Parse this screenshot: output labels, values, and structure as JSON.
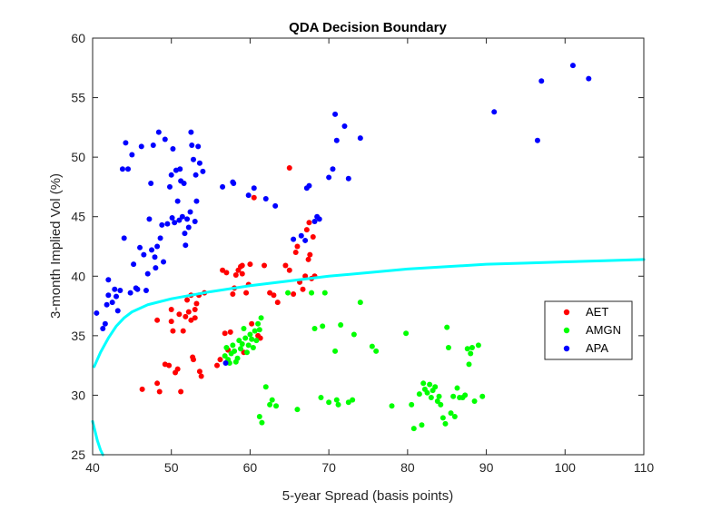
{
  "chart_data": {
    "type": "scatter",
    "title": "QDA Decision Boundary",
    "xlabel": "5-year Spread (basis points)",
    "ylabel": "3-month Implied Vol (%)",
    "xlim": [
      40,
      110
    ],
    "ylim": [
      25,
      60
    ],
    "xticks": [
      "40",
      "50",
      "60",
      "70",
      "80",
      "90",
      "100",
      "110"
    ],
    "yticks": [
      "25",
      "30",
      "35",
      "40",
      "45",
      "50",
      "55",
      "60"
    ],
    "legend_position": "right",
    "series": [
      {
        "name": "AET",
        "color": "#ff0000",
        "points": [
          [
            46.3,
            30.5
          ],
          [
            48.2,
            36.3
          ],
          [
            48.2,
            31.0
          ],
          [
            48.5,
            30.3
          ],
          [
            49.2,
            32.6
          ],
          [
            49.7,
            32.5
          ],
          [
            50.0,
            37.2
          ],
          [
            50.0,
            36.2
          ],
          [
            50.2,
            35.4
          ],
          [
            50.5,
            31.9
          ],
          [
            50.8,
            32.2
          ],
          [
            51.0,
            36.8
          ],
          [
            51.2,
            30.3
          ],
          [
            51.5,
            35.4
          ],
          [
            51.8,
            36.6
          ],
          [
            52.0,
            38.0
          ],
          [
            52.2,
            37.0
          ],
          [
            52.5,
            36.3
          ],
          [
            52.5,
            38.4
          ],
          [
            52.7,
            33.2
          ],
          [
            52.8,
            33.0
          ],
          [
            53.0,
            36.5
          ],
          [
            53.0,
            37.2
          ],
          [
            53.2,
            37.7
          ],
          [
            53.5,
            38.4
          ],
          [
            53.6,
            32.0
          ],
          [
            53.8,
            31.6
          ],
          [
            54.2,
            38.6
          ],
          [
            55.8,
            32.5
          ],
          [
            56.2,
            33.0
          ],
          [
            56.5,
            40.5
          ],
          [
            56.8,
            35.2
          ],
          [
            57.0,
            40.3
          ],
          [
            57.2,
            33.8
          ],
          [
            57.5,
            35.3
          ],
          [
            57.8,
            38.5
          ],
          [
            58.0,
            39.0
          ],
          [
            58.2,
            40.1
          ],
          [
            58.5,
            40.5
          ],
          [
            58.8,
            40.8
          ],
          [
            59.0,
            40.2
          ],
          [
            59.2,
            33.6
          ],
          [
            59.5,
            38.6
          ],
          [
            59.8,
            39.3
          ],
          [
            60.0,
            41.0
          ],
          [
            60.2,
            36.0
          ],
          [
            60.5,
            46.6
          ],
          [
            61.0,
            35.0
          ],
          [
            61.3,
            34.8
          ],
          [
            61.8,
            40.9
          ],
          [
            62.5,
            38.6
          ],
          [
            63.0,
            38.4
          ],
          [
            63.5,
            37.8
          ],
          [
            64.5,
            40.9
          ],
          [
            65.0,
            40.5
          ],
          [
            65.5,
            38.5
          ],
          [
            65.8,
            42.0
          ],
          [
            66.0,
            42.5
          ],
          [
            66.3,
            39.5
          ],
          [
            66.7,
            38.9
          ],
          [
            67.0,
            40.0
          ],
          [
            67.2,
            43.9
          ],
          [
            67.4,
            41.4
          ],
          [
            67.5,
            44.5
          ],
          [
            67.6,
            41.8
          ],
          [
            67.8,
            39.8
          ],
          [
            68.0,
            43.3
          ],
          [
            68.2,
            40.0
          ],
          [
            65.0,
            49.1
          ],
          [
            59.0,
            40.9
          ]
        ]
      },
      {
        "name": "AMGN",
        "color": "#00ff00",
        "points": [
          [
            56.8,
            33.3
          ],
          [
            57.0,
            34.0
          ],
          [
            57.2,
            33.0
          ],
          [
            57.4,
            32.7
          ],
          [
            57.6,
            33.5
          ],
          [
            57.8,
            34.2
          ],
          [
            58.0,
            33.7
          ],
          [
            58.2,
            32.8
          ],
          [
            58.4,
            33.1
          ],
          [
            58.6,
            34.6
          ],
          [
            58.8,
            33.9
          ],
          [
            59.0,
            34.3
          ],
          [
            59.2,
            35.6
          ],
          [
            59.4,
            34.8
          ],
          [
            59.6,
            33.6
          ],
          [
            59.8,
            34.2
          ],
          [
            60.0,
            35.1
          ],
          [
            60.2,
            34.7
          ],
          [
            60.4,
            34.0
          ],
          [
            60.6,
            35.4
          ],
          [
            60.8,
            34.6
          ],
          [
            61.0,
            36.0
          ],
          [
            61.2,
            35.5
          ],
          [
            61.4,
            36.5
          ],
          [
            61.2,
            28.2
          ],
          [
            61.5,
            27.7
          ],
          [
            62.0,
            30.7
          ],
          [
            62.5,
            29.2
          ],
          [
            62.8,
            29.6
          ],
          [
            63.3,
            29.1
          ],
          [
            64.8,
            38.6
          ],
          [
            66.0,
            28.8
          ],
          [
            67.8,
            38.6
          ],
          [
            68.2,
            35.6
          ],
          [
            69.0,
            29.8
          ],
          [
            69.2,
            35.8
          ],
          [
            69.5,
            38.6
          ],
          [
            70.0,
            29.4
          ],
          [
            70.8,
            33.7
          ],
          [
            71.0,
            29.6
          ],
          [
            71.2,
            29.2
          ],
          [
            71.5,
            35.9
          ],
          [
            72.5,
            29.4
          ],
          [
            73.0,
            29.6
          ],
          [
            73.2,
            35.1
          ],
          [
            74.0,
            37.8
          ],
          [
            75.5,
            34.1
          ],
          [
            76.0,
            33.7
          ],
          [
            78.0,
            29.1
          ],
          [
            79.8,
            35.2
          ],
          [
            80.5,
            29.2
          ],
          [
            80.8,
            27.2
          ],
          [
            81.5,
            30.1
          ],
          [
            81.8,
            27.5
          ],
          [
            82.0,
            31.0
          ],
          [
            82.2,
            30.5
          ],
          [
            82.5,
            30.2
          ],
          [
            82.8,
            30.9
          ],
          [
            83.0,
            29.8
          ],
          [
            83.2,
            30.4
          ],
          [
            83.5,
            30.7
          ],
          [
            83.8,
            29.5
          ],
          [
            84.0,
            29.9
          ],
          [
            84.2,
            29.2
          ],
          [
            84.5,
            28.1
          ],
          [
            84.8,
            27.6
          ],
          [
            85.0,
            35.7
          ],
          [
            85.2,
            34.0
          ],
          [
            85.5,
            28.5
          ],
          [
            85.8,
            29.9
          ],
          [
            86.0,
            28.2
          ],
          [
            86.3,
            30.6
          ],
          [
            86.6,
            29.8
          ],
          [
            87.0,
            29.8
          ],
          [
            87.3,
            30.0
          ],
          [
            87.6,
            33.9
          ],
          [
            87.8,
            32.6
          ],
          [
            88.0,
            33.5
          ],
          [
            88.2,
            34.0
          ],
          [
            88.5,
            29.5
          ],
          [
            89.0,
            34.2
          ],
          [
            89.5,
            29.9
          ]
        ]
      },
      {
        "name": "APA",
        "color": "#0000ff",
        "points": [
          [
            40.5,
            36.9
          ],
          [
            41.3,
            35.6
          ],
          [
            41.6,
            36.0
          ],
          [
            41.8,
            37.6
          ],
          [
            42.0,
            38.4
          ],
          [
            42.0,
            39.7
          ],
          [
            42.5,
            37.8
          ],
          [
            42.8,
            38.9
          ],
          [
            43.0,
            38.3
          ],
          [
            43.2,
            37.1
          ],
          [
            43.5,
            38.8
          ],
          [
            43.8,
            49.0
          ],
          [
            44.0,
            43.2
          ],
          [
            44.2,
            51.2
          ],
          [
            44.5,
            49.0
          ],
          [
            44.8,
            38.6
          ],
          [
            45.0,
            50.2
          ],
          [
            45.2,
            41.0
          ],
          [
            45.5,
            39.0
          ],
          [
            45.7,
            38.9
          ],
          [
            46.0,
            42.4
          ],
          [
            46.2,
            50.9
          ],
          [
            46.5,
            41.8
          ],
          [
            46.8,
            38.8
          ],
          [
            47.0,
            40.2
          ],
          [
            47.2,
            44.8
          ],
          [
            47.4,
            47.8
          ],
          [
            47.5,
            42.2
          ],
          [
            47.7,
            51.0
          ],
          [
            47.9,
            41.6
          ],
          [
            48.0,
            40.7
          ],
          [
            48.2,
            42.5
          ],
          [
            48.4,
            52.1
          ],
          [
            48.6,
            43.2
          ],
          [
            48.8,
            44.3
          ],
          [
            49.0,
            41.2
          ],
          [
            49.2,
            51.5
          ],
          [
            49.5,
            44.4
          ],
          [
            49.8,
            47.5
          ],
          [
            50.0,
            48.5
          ],
          [
            50.1,
            44.9
          ],
          [
            50.2,
            50.7
          ],
          [
            50.4,
            44.5
          ],
          [
            50.6,
            48.9
          ],
          [
            50.8,
            46.3
          ],
          [
            51.0,
            44.7
          ],
          [
            51.1,
            49.0
          ],
          [
            51.2,
            48.0
          ],
          [
            51.4,
            45.0
          ],
          [
            51.6,
            47.8
          ],
          [
            51.7,
            43.6
          ],
          [
            51.8,
            42.6
          ],
          [
            52.0,
            44.8
          ],
          [
            52.2,
            44.1
          ],
          [
            52.4,
            45.4
          ],
          [
            52.5,
            52.1
          ],
          [
            52.6,
            51.0
          ],
          [
            52.8,
            49.8
          ],
          [
            53.0,
            44.6
          ],
          [
            53.1,
            48.5
          ],
          [
            53.2,
            46.3
          ],
          [
            53.4,
            50.9
          ],
          [
            53.6,
            49.5
          ],
          [
            54.0,
            48.8
          ],
          [
            56.5,
            47.5
          ],
          [
            57.8,
            47.9
          ],
          [
            57.9,
            47.8
          ],
          [
            59.8,
            46.8
          ],
          [
            60.5,
            47.4
          ],
          [
            62.0,
            46.5
          ],
          [
            63.2,
            45.9
          ],
          [
            65.5,
            43.1
          ],
          [
            66.5,
            43.4
          ],
          [
            67.0,
            43.0
          ],
          [
            67.2,
            47.4
          ],
          [
            67.5,
            47.6
          ],
          [
            68.2,
            44.6
          ],
          [
            68.5,
            45.0
          ],
          [
            68.8,
            44.8
          ],
          [
            70.0,
            48.3
          ],
          [
            70.5,
            49.0
          ],
          [
            70.8,
            53.6
          ],
          [
            71.0,
            51.4
          ],
          [
            72.0,
            52.6
          ],
          [
            72.5,
            48.2
          ],
          [
            74.0,
            51.6
          ],
          [
            91.0,
            53.8
          ],
          [
            96.5,
            51.4
          ],
          [
            97.0,
            56.4
          ],
          [
            101.0,
            57.7
          ],
          [
            103.0,
            56.6
          ],
          [
            56.9,
            32.7
          ]
        ]
      }
    ],
    "boundary_curve": {
      "color": "#00ffff",
      "upper": [
        [
          40.2,
          32.4
        ],
        [
          41.0,
          33.6
        ],
        [
          42.0,
          34.8
        ],
        [
          43.0,
          35.8
        ],
        [
          44.0,
          36.5
        ],
        [
          45.0,
          37.0
        ],
        [
          47.0,
          37.6
        ],
        [
          50.0,
          38.1
        ],
        [
          55.0,
          38.7
        ],
        [
          60.0,
          39.2
        ],
        [
          65.0,
          39.6
        ],
        [
          70.0,
          40.0
        ],
        [
          75.0,
          40.3
        ],
        [
          80.0,
          40.6
        ],
        [
          85.0,
          40.8
        ],
        [
          90.0,
          41.0
        ],
        [
          95.0,
          41.1
        ],
        [
          100.0,
          41.2
        ],
        [
          105.0,
          41.3
        ],
        [
          110.0,
          41.4
        ]
      ],
      "lower": [
        [
          40.0,
          27.8
        ],
        [
          40.3,
          27.0
        ],
        [
          40.6,
          26.2
        ],
        [
          41.0,
          25.4
        ],
        [
          41.3,
          25.0
        ]
      ]
    }
  }
}
